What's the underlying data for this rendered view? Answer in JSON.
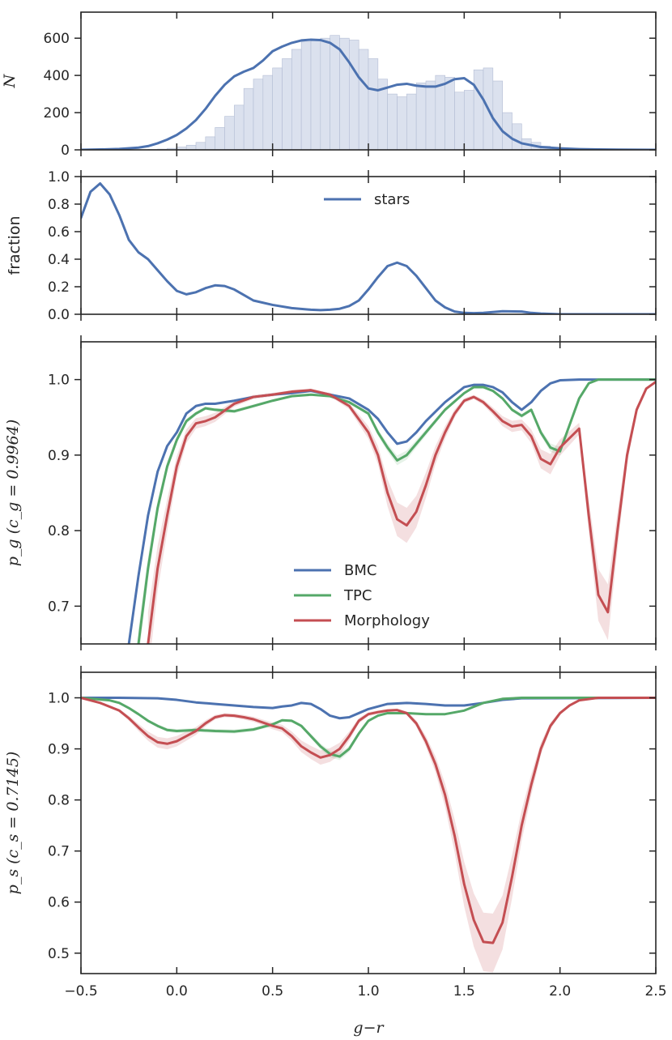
{
  "figure": {
    "xlabel": "g−r"
  },
  "chart_data": [
    {
      "panel": "counts",
      "type": "bar+line",
      "ylabel": "N",
      "xlim": [
        -0.5,
        2.5
      ],
      "ylim": [
        0,
        740
      ],
      "yticks": [
        0,
        200,
        400,
        600
      ],
      "ytick_labels": [
        "0",
        "200",
        "400",
        "600"
      ],
      "histogram": {
        "bin_start": -0.5,
        "bin_width": 0.05,
        "counts": [
          0,
          0,
          0,
          0,
          0,
          0,
          0,
          2,
          4,
          8,
          15,
          25,
          40,
          70,
          120,
          180,
          240,
          330,
          380,
          400,
          440,
          490,
          540,
          580,
          590,
          600,
          615,
          600,
          590,
          540,
          490,
          380,
          300,
          285,
          300,
          360,
          370,
          400,
          390,
          310,
          320,
          430,
          440,
          370,
          200,
          140,
          60,
          40,
          20,
          10,
          5,
          2,
          1,
          0,
          0,
          0,
          0,
          0,
          0,
          0
        ]
      },
      "series": [
        {
          "name": "N",
          "color": "#4c72b0",
          "x": [
            -0.5,
            -0.4,
            -0.3,
            -0.2,
            -0.15,
            -0.1,
            -0.05,
            0.0,
            0.05,
            0.1,
            0.15,
            0.2,
            0.25,
            0.3,
            0.35,
            0.4,
            0.45,
            0.5,
            0.55,
            0.6,
            0.65,
            0.7,
            0.75,
            0.8,
            0.85,
            0.9,
            0.95,
            1.0,
            1.05,
            1.1,
            1.15,
            1.2,
            1.25,
            1.3,
            1.35,
            1.4,
            1.45,
            1.5,
            1.55,
            1.6,
            1.65,
            1.7,
            1.75,
            1.8,
            1.9,
            2.0,
            2.1,
            2.2,
            2.5
          ],
          "y": [
            0,
            2,
            5,
            12,
            20,
            35,
            55,
            80,
            115,
            160,
            220,
            290,
            350,
            395,
            420,
            440,
            480,
            530,
            555,
            575,
            588,
            592,
            590,
            575,
            540,
            470,
            390,
            330,
            320,
            335,
            350,
            355,
            345,
            340,
            340,
            355,
            380,
            385,
            350,
            270,
            170,
            100,
            60,
            35,
            15,
            8,
            4,
            2,
            0
          ]
        }
      ]
    },
    {
      "panel": "fraction",
      "type": "line",
      "ylabel": "fraction",
      "xlim": [
        -0.5,
        2.5
      ],
      "ylim": [
        0,
        1.0
      ],
      "yticks": [
        0.0,
        0.2,
        0.4,
        0.6,
        0.8,
        1.0
      ],
      "ytick_labels": [
        "0.0",
        "0.2",
        "0.4",
        "0.6",
        "0.8",
        "1.0"
      ],
      "legend": {
        "position": "upper center"
      },
      "series": [
        {
          "name": "stars",
          "color": "#4c72b0",
          "x": [
            -0.5,
            -0.45,
            -0.4,
            -0.35,
            -0.3,
            -0.25,
            -0.2,
            -0.15,
            -0.1,
            -0.05,
            0.0,
            0.05,
            0.1,
            0.15,
            0.2,
            0.25,
            0.3,
            0.35,
            0.4,
            0.5,
            0.6,
            0.7,
            0.75,
            0.8,
            0.85,
            0.9,
            0.95,
            1.0,
            1.05,
            1.1,
            1.15,
            1.2,
            1.25,
            1.3,
            1.35,
            1.4,
            1.45,
            1.5,
            1.55,
            1.6,
            1.7,
            1.8,
            1.85,
            1.9,
            2.0,
            2.5
          ],
          "y": [
            0.7,
            0.89,
            0.95,
            0.87,
            0.72,
            0.54,
            0.45,
            0.4,
            0.32,
            0.24,
            0.17,
            0.145,
            0.16,
            0.19,
            0.21,
            0.205,
            0.18,
            0.14,
            0.1,
            0.068,
            0.045,
            0.033,
            0.03,
            0.033,
            0.04,
            0.06,
            0.1,
            0.18,
            0.27,
            0.35,
            0.375,
            0.35,
            0.28,
            0.19,
            0.1,
            0.05,
            0.02,
            0.01,
            0.008,
            0.01,
            0.022,
            0.02,
            0.01,
            0.005,
            0.0,
            0.0
          ]
        }
      ]
    },
    {
      "panel": "pg",
      "type": "line",
      "ylabel": "p_g (c_g = 0.9964)",
      "xlim": [
        -0.5,
        2.5
      ],
      "ylim": [
        0.65,
        1.05
      ],
      "yticks": [
        0.7,
        0.8,
        0.9,
        1.0
      ],
      "ytick_labels": [
        "0.7",
        "0.8",
        "0.9",
        "1.0"
      ],
      "legend": {
        "position": "lower center"
      },
      "series": [
        {
          "name": "BMC",
          "color": "#4c72b0",
          "x": [
            -0.25,
            -0.2,
            -0.15,
            -0.1,
            -0.05,
            0.0,
            0.05,
            0.1,
            0.15,
            0.2,
            0.3,
            0.4,
            0.5,
            0.6,
            0.7,
            0.8,
            0.9,
            1.0,
            1.05,
            1.1,
            1.15,
            1.2,
            1.25,
            1.3,
            1.4,
            1.5,
            1.55,
            1.6,
            1.65,
            1.7,
            1.75,
            1.8,
            1.85,
            1.9,
            1.95,
            2.0,
            2.1,
            2.5
          ],
          "y": [
            0.65,
            0.74,
            0.82,
            0.878,
            0.912,
            0.93,
            0.955,
            0.965,
            0.968,
            0.968,
            0.972,
            0.977,
            0.98,
            0.982,
            0.985,
            0.98,
            0.975,
            0.96,
            0.948,
            0.93,
            0.915,
            0.918,
            0.93,
            0.945,
            0.97,
            0.99,
            0.993,
            0.993,
            0.99,
            0.983,
            0.97,
            0.96,
            0.97,
            0.985,
            0.995,
            0.999,
            1.0,
            1.0
          ]
        },
        {
          "name": "TPC",
          "color": "#55a868",
          "x": [
            -0.2,
            -0.15,
            -0.1,
            -0.05,
            0.0,
            0.05,
            0.1,
            0.15,
            0.2,
            0.3,
            0.4,
            0.5,
            0.6,
            0.7,
            0.8,
            0.9,
            1.0,
            1.05,
            1.1,
            1.15,
            1.2,
            1.25,
            1.3,
            1.4,
            1.5,
            1.55,
            1.6,
            1.65,
            1.7,
            1.75,
            1.8,
            1.85,
            1.9,
            1.95,
            2.0,
            2.05,
            2.1,
            2.15,
            2.2,
            2.5
          ],
          "y": [
            0.65,
            0.75,
            0.83,
            0.885,
            0.92,
            0.945,
            0.955,
            0.962,
            0.96,
            0.958,
            0.965,
            0.972,
            0.978,
            0.98,
            0.978,
            0.97,
            0.955,
            0.93,
            0.91,
            0.893,
            0.9,
            0.915,
            0.93,
            0.96,
            0.982,
            0.99,
            0.99,
            0.985,
            0.975,
            0.96,
            0.952,
            0.96,
            0.93,
            0.91,
            0.905,
            0.94,
            0.975,
            0.995,
            1.0,
            1.0
          ]
        },
        {
          "name": "Morphology",
          "color": "#c44e52",
          "x": [
            -0.15,
            -0.1,
            -0.05,
            0.0,
            0.05,
            0.1,
            0.15,
            0.2,
            0.3,
            0.4,
            0.5,
            0.6,
            0.7,
            0.8,
            0.9,
            1.0,
            1.05,
            1.1,
            1.15,
            1.2,
            1.25,
            1.3,
            1.35,
            1.4,
            1.45,
            1.5,
            1.55,
            1.6,
            1.65,
            1.7,
            1.75,
            1.8,
            1.85,
            1.9,
            1.95,
            2.0,
            2.1,
            2.15,
            2.2,
            2.25,
            2.3,
            2.35,
            2.4,
            2.45,
            2.5
          ],
          "y": [
            0.65,
            0.75,
            0.82,
            0.885,
            0.925,
            0.942,
            0.945,
            0.95,
            0.968,
            0.977,
            0.98,
            0.984,
            0.986,
            0.98,
            0.965,
            0.93,
            0.9,
            0.85,
            0.815,
            0.807,
            0.825,
            0.86,
            0.9,
            0.93,
            0.955,
            0.972,
            0.977,
            0.97,
            0.958,
            0.945,
            0.938,
            0.94,
            0.925,
            0.895,
            0.888,
            0.91,
            0.935,
            0.82,
            0.715,
            0.692,
            0.8,
            0.9,
            0.96,
            0.988,
            0.997
          ]
        }
      ]
    },
    {
      "panel": "ps",
      "type": "line",
      "ylabel": "p_s (c_s = 0.7145)",
      "xlim": [
        -0.5,
        2.5
      ],
      "ylim": [
        0.46,
        1.05
      ],
      "yticks": [
        0.5,
        0.6,
        0.7,
        0.8,
        0.9,
        1.0
      ],
      "ytick_labels": [
        "0.5",
        "0.6",
        "0.7",
        "0.8",
        "0.9",
        "1.0"
      ],
      "xticks": [
        -0.5,
        0.0,
        0.5,
        1.0,
        1.5,
        2.0,
        2.5
      ],
      "xtick_labels": [
        "−0.5",
        "0.0",
        "0.5",
        "1.0",
        "1.5",
        "2.0",
        "2.5"
      ],
      "series": [
        {
          "name": "BMC",
          "color": "#4c72b0",
          "x": [
            -0.5,
            -0.3,
            -0.1,
            0.0,
            0.1,
            0.2,
            0.3,
            0.4,
            0.5,
            0.55,
            0.6,
            0.65,
            0.7,
            0.75,
            0.8,
            0.85,
            0.9,
            0.95,
            1.0,
            1.1,
            1.2,
            1.3,
            1.4,
            1.5,
            1.6,
            1.7,
            1.8,
            2.5
          ],
          "y": [
            1.0,
            1.0,
            0.999,
            0.996,
            0.991,
            0.988,
            0.985,
            0.982,
            0.98,
            0.983,
            0.985,
            0.99,
            0.988,
            0.978,
            0.965,
            0.96,
            0.962,
            0.97,
            0.978,
            0.988,
            0.99,
            0.988,
            0.985,
            0.985,
            0.99,
            0.996,
            0.999,
            1.0
          ]
        },
        {
          "name": "TPC",
          "color": "#55a868",
          "x": [
            -0.5,
            -0.35,
            -0.3,
            -0.25,
            -0.2,
            -0.15,
            -0.1,
            -0.05,
            0.0,
            0.1,
            0.2,
            0.3,
            0.4,
            0.5,
            0.55,
            0.6,
            0.65,
            0.7,
            0.75,
            0.8,
            0.85,
            0.9,
            0.95,
            1.0,
            1.05,
            1.1,
            1.2,
            1.3,
            1.4,
            1.5,
            1.6,
            1.7,
            1.8,
            2.5
          ],
          "y": [
            1.0,
            0.995,
            0.99,
            0.98,
            0.968,
            0.955,
            0.945,
            0.937,
            0.935,
            0.937,
            0.935,
            0.934,
            0.938,
            0.948,
            0.956,
            0.955,
            0.945,
            0.925,
            0.905,
            0.89,
            0.885,
            0.9,
            0.93,
            0.955,
            0.965,
            0.97,
            0.97,
            0.968,
            0.968,
            0.975,
            0.99,
            0.998,
            1.0,
            1.0
          ]
        },
        {
          "name": "Morphology",
          "color": "#c44e52",
          "x": [
            -0.5,
            -0.4,
            -0.3,
            -0.25,
            -0.2,
            -0.15,
            -0.1,
            -0.05,
            0.0,
            0.05,
            0.1,
            0.15,
            0.2,
            0.25,
            0.3,
            0.35,
            0.4,
            0.5,
            0.55,
            0.6,
            0.65,
            0.7,
            0.75,
            0.8,
            0.85,
            0.9,
            0.95,
            1.0,
            1.05,
            1.1,
            1.15,
            1.2,
            1.25,
            1.3,
            1.35,
            1.4,
            1.45,
            1.5,
            1.55,
            1.6,
            1.65,
            1.7,
            1.75,
            1.8,
            1.85,
            1.9,
            1.95,
            2.0,
            2.05,
            2.1,
            2.2,
            2.5
          ],
          "y": [
            1.0,
            0.99,
            0.975,
            0.96,
            0.942,
            0.925,
            0.913,
            0.91,
            0.915,
            0.925,
            0.935,
            0.95,
            0.962,
            0.966,
            0.965,
            0.962,
            0.958,
            0.945,
            0.94,
            0.925,
            0.905,
            0.893,
            0.883,
            0.888,
            0.9,
            0.925,
            0.955,
            0.968,
            0.972,
            0.975,
            0.976,
            0.97,
            0.95,
            0.915,
            0.87,
            0.81,
            0.73,
            0.635,
            0.565,
            0.522,
            0.52,
            0.56,
            0.65,
            0.75,
            0.83,
            0.9,
            0.945,
            0.97,
            0.985,
            0.995,
            1.0,
            1.0
          ]
        }
      ]
    }
  ]
}
